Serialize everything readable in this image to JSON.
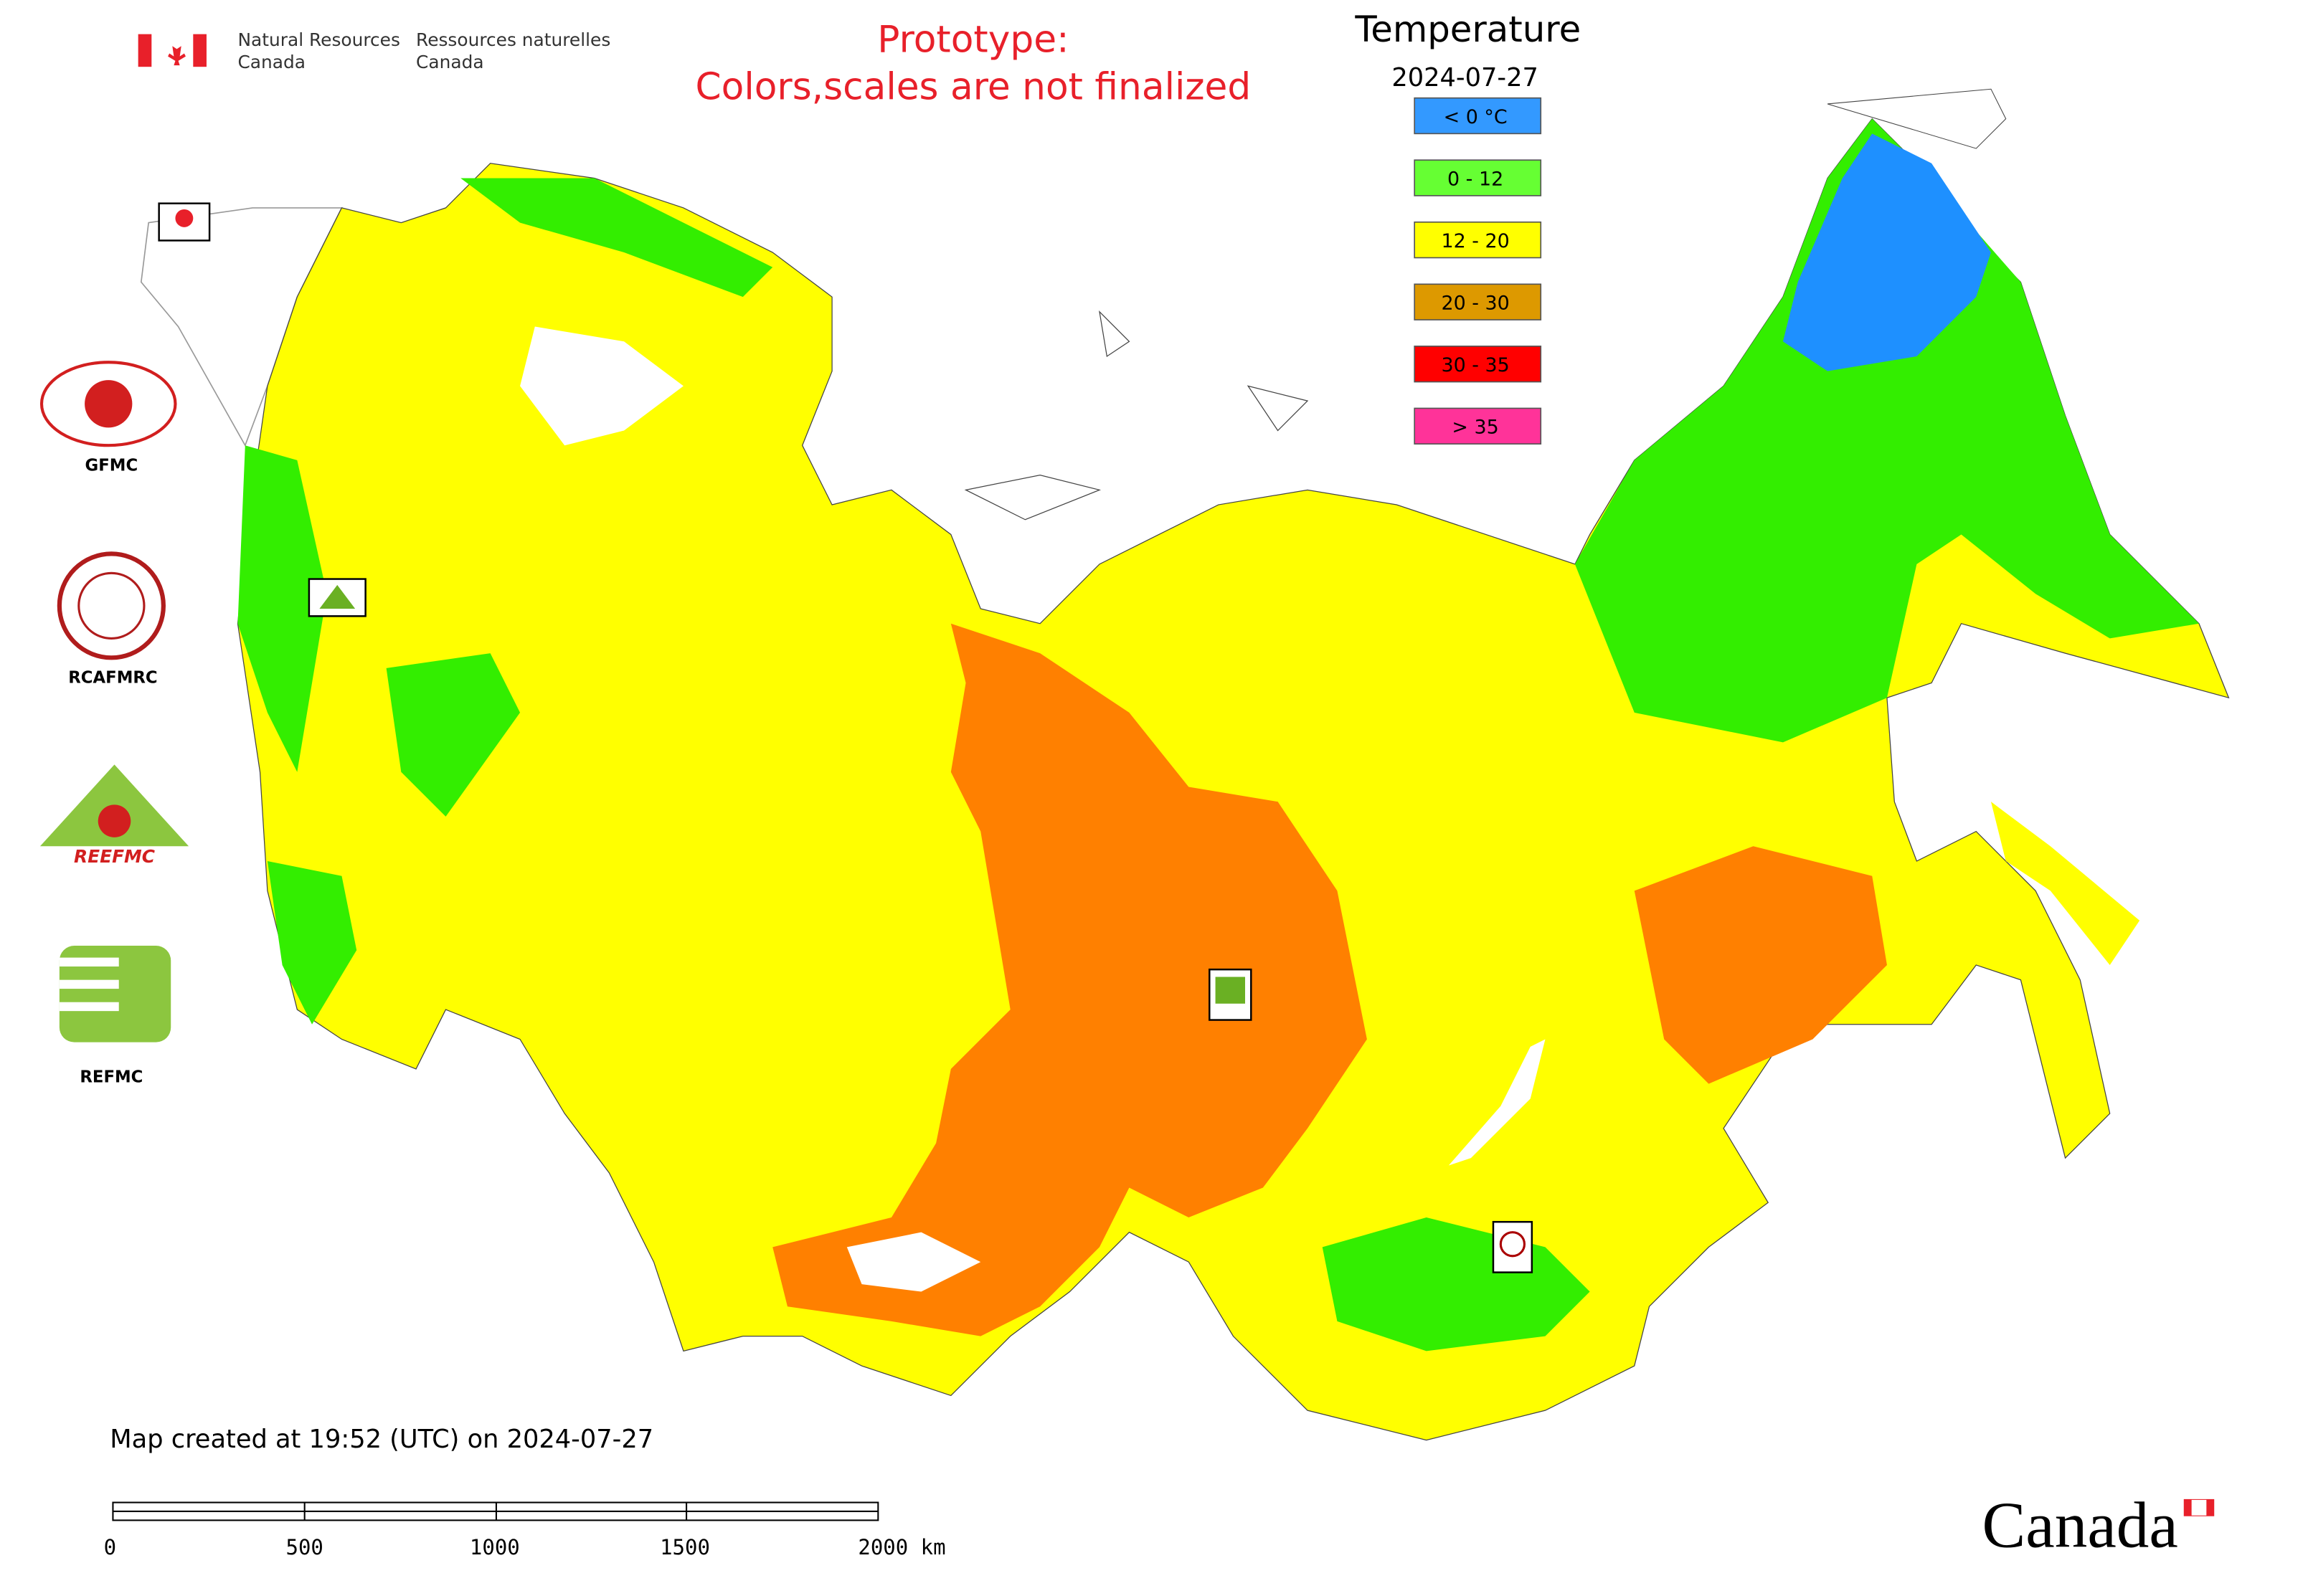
{
  "header": {
    "org_en": [
      "Natural Resources",
      "Canada"
    ],
    "org_fr": [
      "Ressources naturelles",
      "Canada"
    ]
  },
  "notice": [
    "Prototype:",
    "Colors,scales are not finalized"
  ],
  "legend": {
    "title": "Temperature",
    "date": "2024-07-27",
    "items": [
      {
        "label": "< 0 °C",
        "color": "#3399ff"
      },
      {
        "label": "0 - 12",
        "color": "#66ff33"
      },
      {
        "label": "12 - 20",
        "color": "#ffff00"
      },
      {
        "label": "20 - 30",
        "color": "#dd9900"
      },
      {
        "label": "30 - 35",
        "color": "#ff0000"
      },
      {
        "label": "> 35",
        "color": "#ff3399"
      }
    ]
  },
  "logos": {
    "gfmc": "GFMC",
    "rcafmrc": "RCAFMRC",
    "reefmc": "REEFMC",
    "refmc": "REFMC"
  },
  "footer": {
    "created": "Map created at 19:52 (UTC) on 2024-07-27",
    "scale_labels": [
      "0",
      "500",
      "1000",
      "1500",
      "2000 km"
    ],
    "wordmark": "Canada"
  }
}
